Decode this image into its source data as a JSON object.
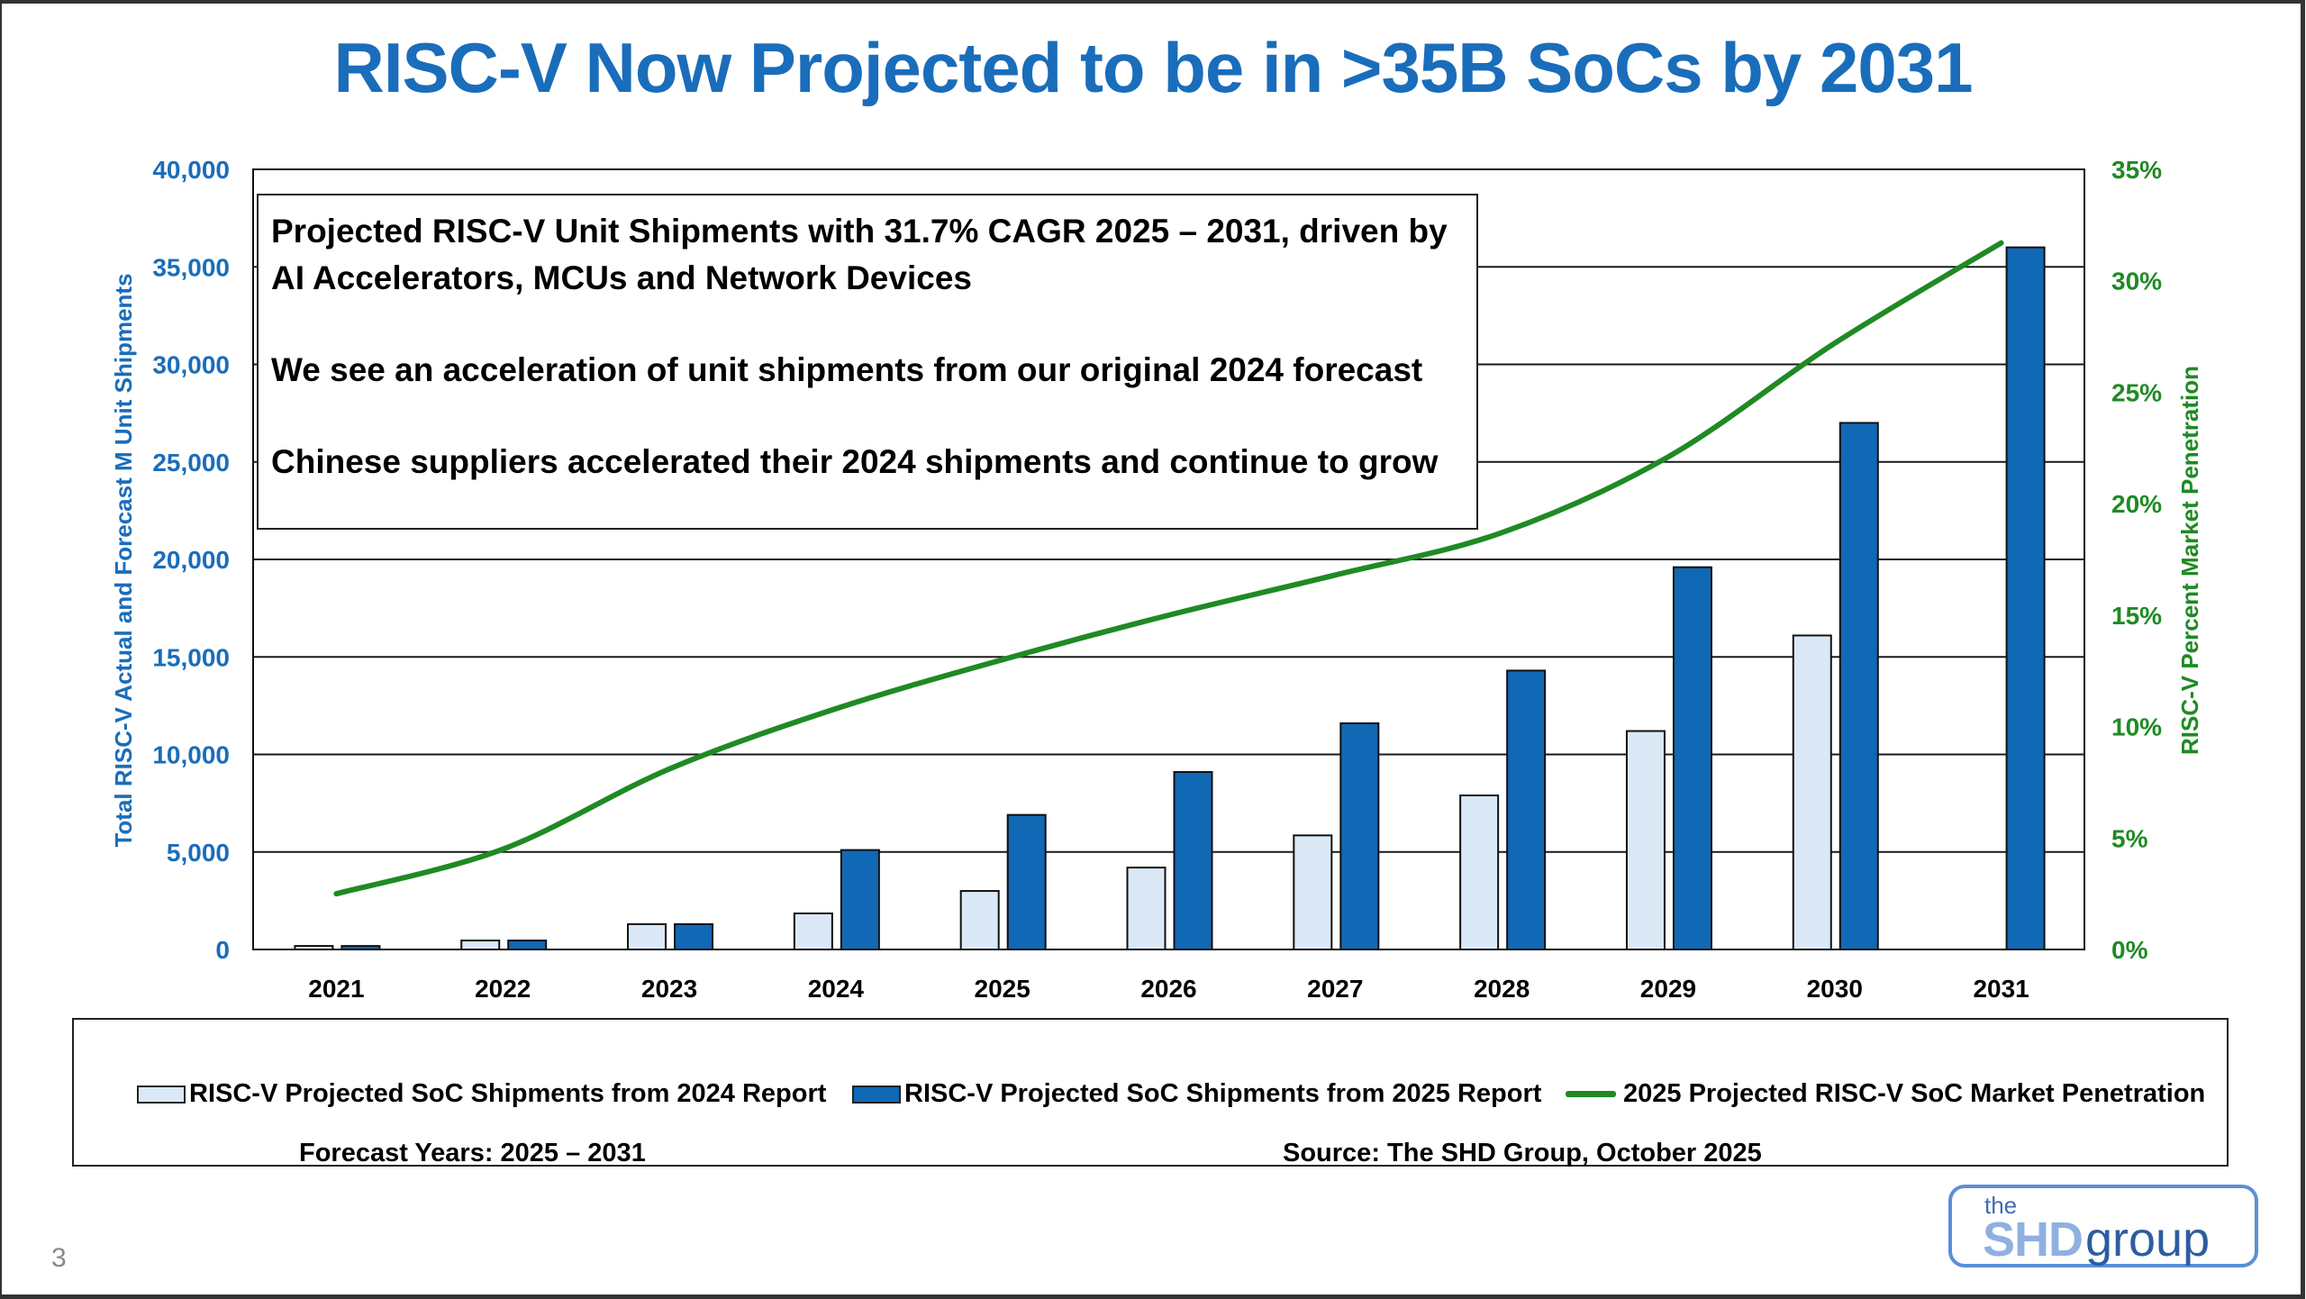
{
  "slide": {
    "title": "RISC-V Now Projected to be in >35B SoCs by 2031",
    "page_number": "3",
    "logo": {
      "the": "the",
      "shd": "SHD",
      "group": "group"
    }
  },
  "callout": {
    "lines": [
      "Projected RISC-V Unit Shipments with 31.7% CAGR 2025 – 2031, driven by AI Accelerators, MCUs and Network Devices",
      "We see an acceleration of unit shipments from our original 2024 forecast",
      "Chinese suppliers accelerated their 2024 shipments and continue to grow"
    ]
  },
  "legend": {
    "items": [
      "RISC-V Projected SoC Shipments from 2024 Report",
      "RISC-V Projected SoC Shipments from 2025 Report",
      "2025 Projected RISC-V SoC Market Penetration"
    ],
    "forecast_note": "Forecast Years: 2025 – 2031",
    "source": "Source: The SHD Group, October 2025"
  },
  "colors": {
    "title": "#1a6dba",
    "left_axis": "#1a6dba",
    "right_axis": "#1f8a24",
    "bar_2024_report": "#dbe9f7",
    "bar_2025_report": "#1168b5",
    "penetration_line": "#1f8a24"
  },
  "chart_data": {
    "type": "bar",
    "title": "RISC-V Now Projected to be in >35B SoCs by 2031",
    "categories": [
      "2021",
      "2022",
      "2023",
      "2024",
      "2025",
      "2026",
      "2027",
      "2028",
      "2029",
      "2030",
      "2031"
    ],
    "ylabel": "Total RISC-V Actual and Forecast M Unit Shipments",
    "ylabel_right": "RISC-V Percent Market Penetration",
    "ylim": [
      0,
      40000
    ],
    "ylim_right": [
      0,
      35
    ],
    "yticks": [
      "0",
      "5,000",
      "10,000",
      "15,000",
      "20,000",
      "25,000",
      "30,000",
      "35,000",
      "40,000"
    ],
    "yticks_right": [
      "0%",
      "5%",
      "10%",
      "15%",
      "20%",
      "25%",
      "30%",
      "35%"
    ],
    "grid": true,
    "legend_position": "bottom",
    "series": [
      {
        "name": "RISC-V Projected SoC Shipments from 2024 Report",
        "type": "bar",
        "values": [
          180,
          460,
          1300,
          1850,
          3000,
          4200,
          5850,
          7900,
          11200,
          16100,
          null
        ]
      },
      {
        "name": "RISC-V Projected SoC Shipments from 2025 Report",
        "type": "bar",
        "values": [
          180,
          460,
          1300,
          5100,
          6900,
          9100,
          11600,
          14300,
          19600,
          27000,
          36000
        ]
      },
      {
        "name": "2025 Projected RISC-V SoC Market Penetration",
        "type": "line",
        "axis": "right",
        "unit": "%",
        "values": [
          2.5,
          4.5,
          8.1,
          10.8,
          13.0,
          15.0,
          16.8,
          18.7,
          22.1,
          27.2,
          31.7
        ]
      }
    ]
  }
}
